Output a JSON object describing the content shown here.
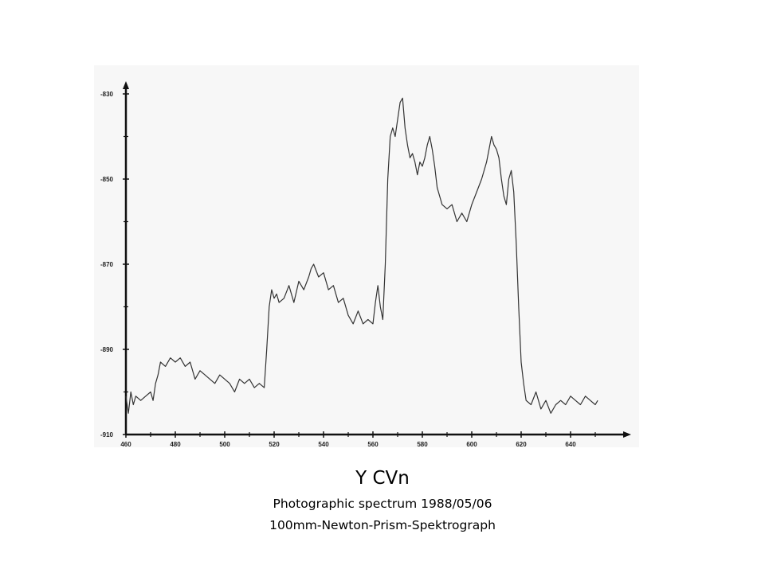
{
  "title": "Y CVn",
  "subtitle_line1": "Photographic spectrum 1988/05/06",
  "subtitle_line2": "100mm-Newton-Prism-Spektrograph",
  "chart_data": {
    "type": "line",
    "xlabel": "",
    "ylabel": "",
    "xlim": [
      460,
      655
    ],
    "ylim": [
      -910,
      -826
    ],
    "x_ticks": [
      460,
      480,
      500,
      520,
      540,
      560,
      580,
      600,
      620,
      640
    ],
    "x_tick_labels": [
      "460",
      "480",
      "500",
      "520",
      "540",
      "560",
      "580",
      "600",
      "620",
      "640"
    ],
    "y_ticks": [
      -830,
      -850,
      -870,
      -890,
      -910
    ],
    "y_tick_labels": [
      "-830",
      "-850",
      "-870",
      "-890",
      "-910"
    ],
    "grid": false,
    "line_color": "#333333",
    "series": [
      {
        "x": [
          460,
          461,
          462,
          463,
          464,
          466,
          468,
          470,
          471,
          472,
          473,
          474,
          476,
          478,
          480,
          482,
          484,
          486,
          488,
          490,
          492,
          494,
          496,
          498,
          500,
          502,
          504,
          506,
          508,
          510,
          512,
          514,
          516,
          517,
          518,
          519,
          520,
          521,
          522,
          524,
          526,
          528,
          530,
          532,
          534,
          535,
          536,
          538,
          540,
          542,
          544,
          546,
          548,
          550,
          552,
          554,
          556,
          558,
          560,
          561,
          562,
          563,
          564,
          565,
          566,
          567,
          568,
          569,
          570,
          571,
          572,
          573,
          574,
          575,
          576,
          577,
          578,
          579,
          580,
          581,
          582,
          583,
          584,
          585,
          586,
          588,
          590,
          592,
          594,
          596,
          598,
          600,
          602,
          604,
          606,
          607,
          608,
          609,
          610,
          611,
          612,
          613,
          614,
          615,
          616,
          617,
          618,
          619,
          620,
          621,
          622,
          624,
          626,
          628,
          630,
          632,
          634,
          636,
          638,
          640,
          642,
          644,
          646,
          648,
          650,
          651
        ],
        "y": [
          -901,
          -905,
          -900,
          -903,
          -901,
          -902,
          -901,
          -900,
          -902,
          -898,
          -896,
          -893,
          -894,
          -892,
          -893,
          -892,
          -894,
          -893,
          -897,
          -895,
          -896,
          -897,
          -898,
          -896,
          -897,
          -898,
          -900,
          -897,
          -898,
          -897,
          -899,
          -898,
          -899,
          -890,
          -880,
          -876,
          -878,
          -877,
          -879,
          -878,
          -875,
          -879,
          -874,
          -876,
          -873,
          -871,
          -870,
          -873,
          -872,
          -876,
          -875,
          -879,
          -878,
          -882,
          -884,
          -881,
          -884,
          -883,
          -884,
          -879,
          -875,
          -880,
          -883,
          -870,
          -850,
          -840,
          -838,
          -840,
          -836,
          -832,
          -831,
          -838,
          -842,
          -845,
          -844,
          -846,
          -849,
          -846,
          -847,
          -845,
          -842,
          -840,
          -843,
          -847,
          -852,
          -856,
          -857,
          -856,
          -860,
          -858,
          -860,
          -856,
          -853,
          -850,
          -846,
          -843,
          -840,
          -842,
          -843,
          -845,
          -850,
          -854,
          -856,
          -850,
          -848,
          -853,
          -865,
          -880,
          -893,
          -898,
          -902,
          -903,
          -900,
          -904,
          -902,
          -905,
          -903,
          -902,
          -903,
          -901,
          -902,
          -903,
          -901,
          -902,
          -903,
          -902
        ]
      }
    ]
  }
}
